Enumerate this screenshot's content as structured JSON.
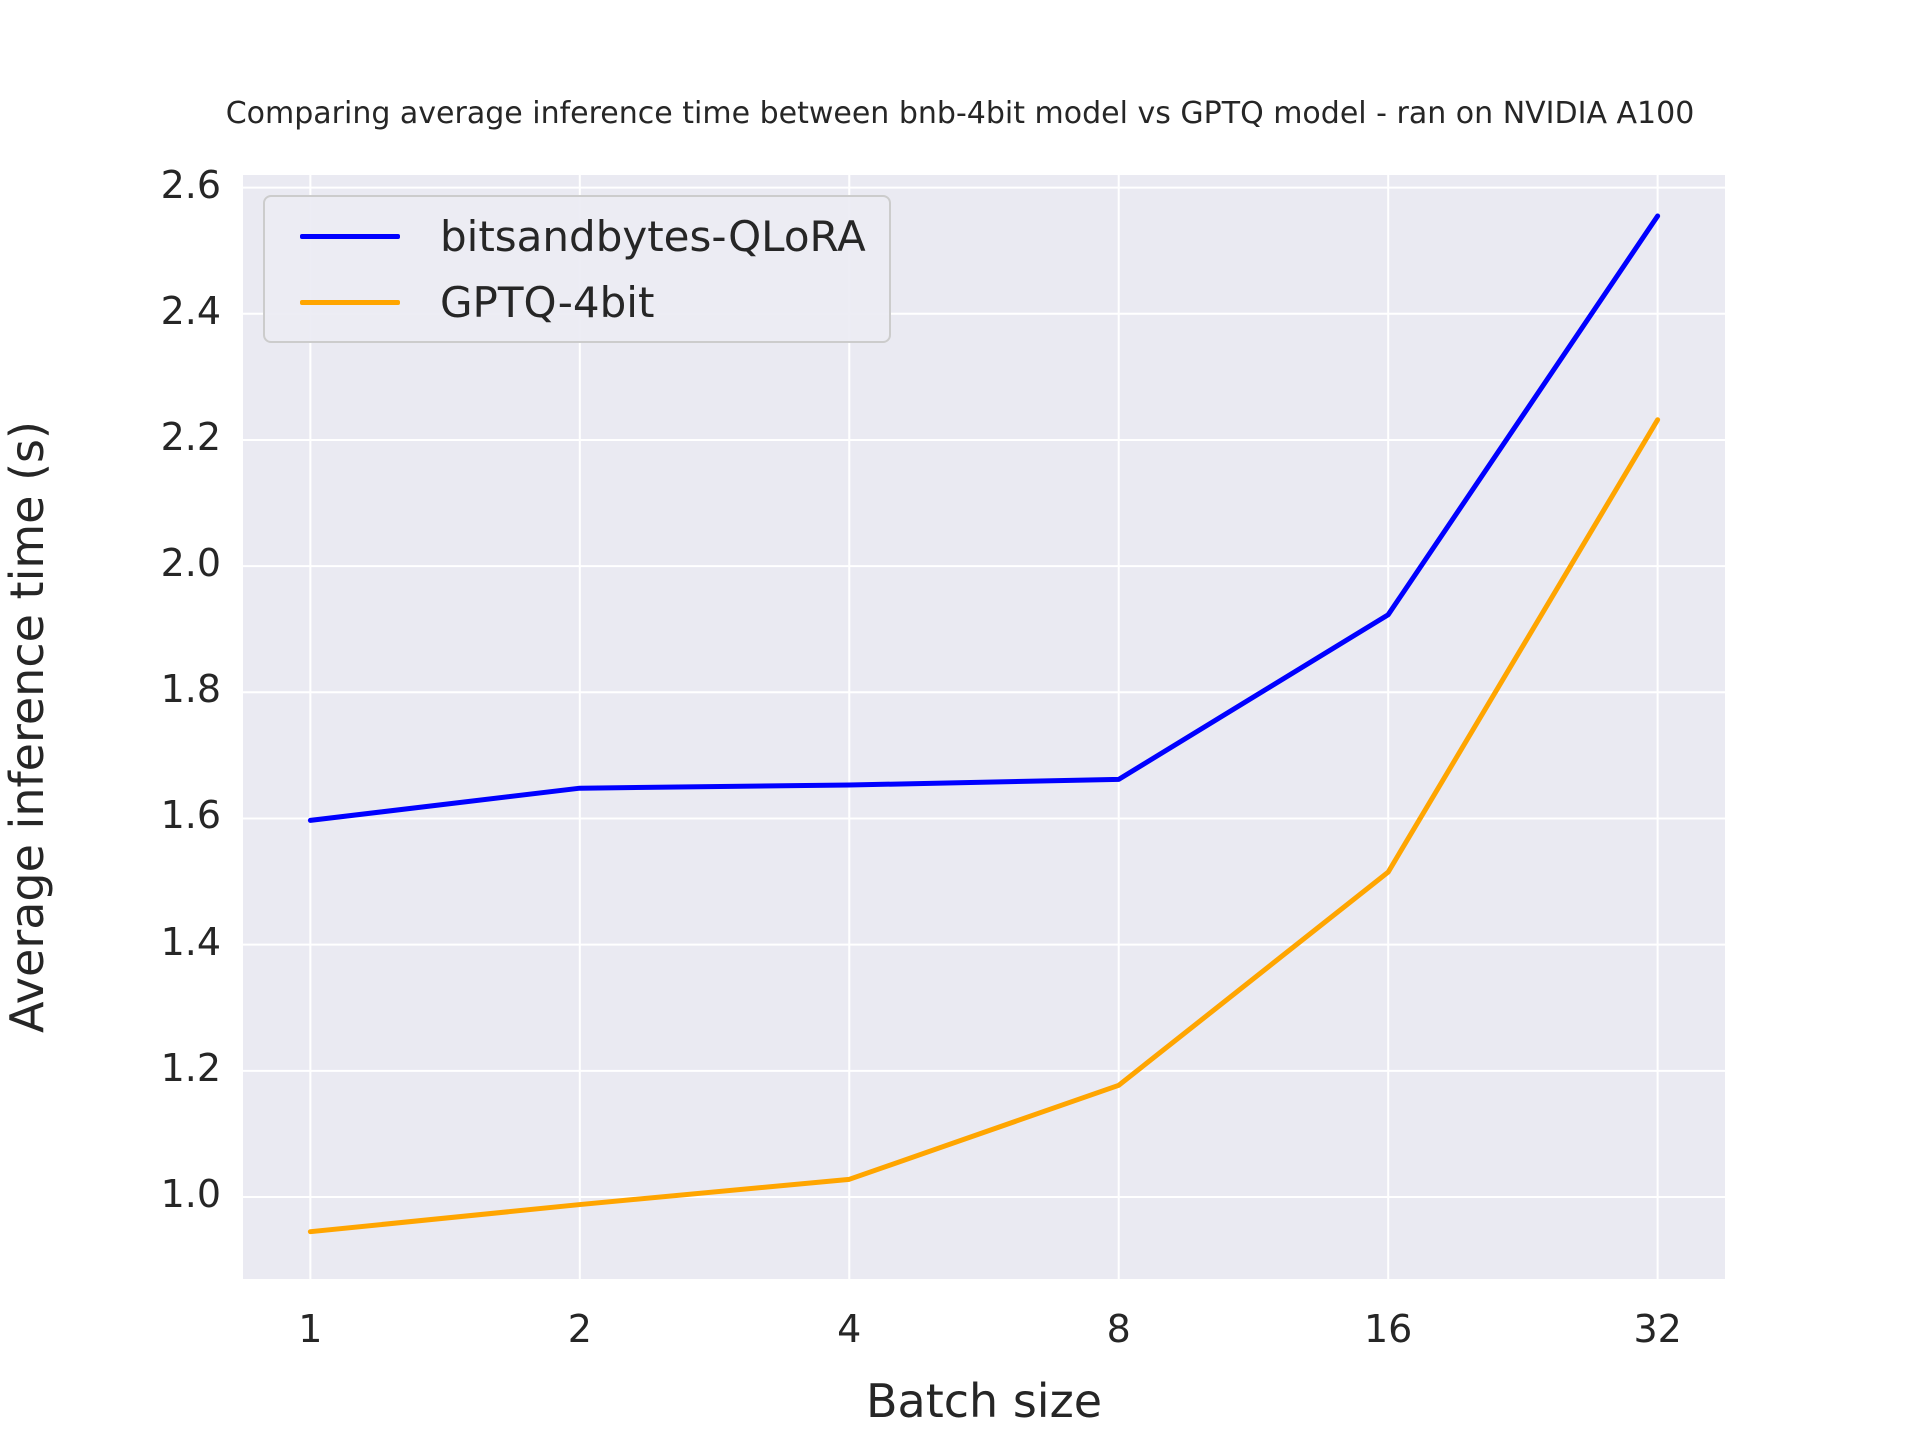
{
  "chart_data": {
    "type": "line",
    "title": "Comparing average inference time between bnb-4bit model vs GPTQ model - ran on NVIDIA A100",
    "xlabel": "Batch size",
    "ylabel": "Average inference time (s)",
    "x": [
      1,
      2,
      4,
      8,
      16,
      32
    ],
    "x_scale": "log2",
    "xtick_labels": [
      "1",
      "2",
      "4",
      "8",
      "16",
      "32"
    ],
    "yticks": [
      1.0,
      1.2,
      1.4,
      1.6,
      1.8,
      2.0,
      2.2,
      2.4,
      2.6
    ],
    "ytick_labels": [
      "1.0",
      "1.2",
      "1.4",
      "1.6",
      "1.8",
      "2.0",
      "2.2",
      "2.4",
      "2.6"
    ],
    "xlim_log2": [
      -0.25,
      5.25
    ],
    "ylim": [
      0.87,
      2.62
    ],
    "grid": true,
    "legend_position": "upper left",
    "series": [
      {
        "name": "bitsandbytes-QLoRA",
        "color": "#0000ff",
        "values": [
          1.597,
          1.648,
          1.653,
          1.662,
          1.923,
          2.555
        ]
      },
      {
        "name": "GPTQ-4bit",
        "color": "#ffa500",
        "values": [
          0.945,
          0.988,
          1.028,
          1.177,
          1.515,
          2.232
        ]
      }
    ]
  },
  "style": {
    "plot_bg": "#eaeaf2",
    "grid_color": "#ffffff",
    "text_color": "#262626",
    "line_width": 5
  },
  "legend": {
    "items": [
      {
        "label": "bitsandbytes-QLoRA",
        "color": "#0000ff"
      },
      {
        "label": "GPTQ-4bit",
        "color": "#ffa500"
      }
    ]
  }
}
